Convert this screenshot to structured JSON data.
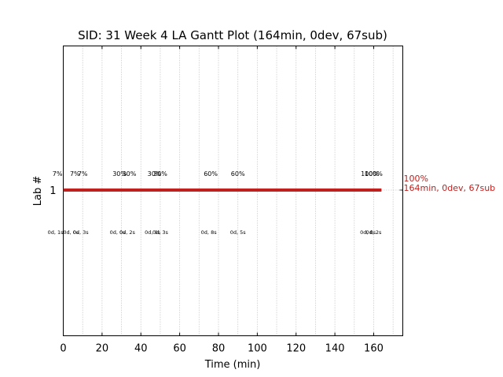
{
  "chart_data": {
    "type": "gantt",
    "title": "SID: 31 Week 4 LA Gantt Plot (164min, 0dev, 67sub)",
    "xlabel": "Time (min)",
    "ylabel": "Lab #",
    "xlim": [
      0,
      175
    ],
    "xticks": [
      "0",
      "20",
      "40",
      "60",
      "80",
      "100",
      "120",
      "140",
      "160"
    ],
    "xtick_values": [
      0,
      20,
      40,
      60,
      80,
      100,
      120,
      140,
      160
    ],
    "grid": "vertical-dotted",
    "rows": [
      {
        "label": "1",
        "bar_start": 0,
        "bar_end": 164,
        "bar_color": "#c0201e",
        "end_label_pct": "100%",
        "end_label_info": "164min, 0dev, 67sub",
        "pct_markers": [
          {
            "x": -3,
            "text": "7%"
          },
          {
            "x": 6,
            "text": "7%"
          },
          {
            "x": 10,
            "text": "7%"
          },
          {
            "x": 29,
            "text": "30%"
          },
          {
            "x": 34,
            "text": "30%"
          },
          {
            "x": 47,
            "text": "30%"
          },
          {
            "x": 50,
            "text": "30%"
          },
          {
            "x": 76,
            "text": "60%"
          },
          {
            "x": 90,
            "text": "60%"
          },
          {
            "x": 158,
            "text": "100%"
          },
          {
            "x": 160,
            "text": "100%"
          }
        ],
        "time_markers": [
          {
            "x": -4,
            "text": "0d, 1s"
          },
          {
            "x": 4,
            "text": "0d, 0s"
          },
          {
            "x": 9,
            "text": "0d, 3s"
          },
          {
            "x": 28,
            "text": "0d, 0s"
          },
          {
            "x": 33,
            "text": "0d, 2s"
          },
          {
            "x": 46,
            "text": "0d, 0s"
          },
          {
            "x": 50,
            "text": "0d, 3s"
          },
          {
            "x": 75,
            "text": "0d, 8s"
          },
          {
            "x": 90,
            "text": "0d, 5s"
          },
          {
            "x": 157,
            "text": "0d, 0s"
          },
          {
            "x": 160,
            "text": "0d, 2s"
          }
        ]
      }
    ]
  }
}
